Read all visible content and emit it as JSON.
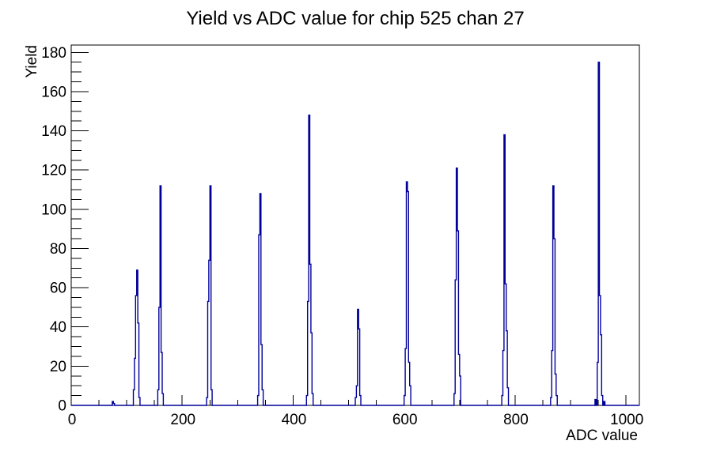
{
  "page": {
    "background": "#ffffff"
  },
  "chart_data": {
    "type": "histogram",
    "title": "Yield vs ADC value for chip 525 chan 27",
    "xlabel": "ADC value",
    "ylabel": "Yield",
    "x_range": [
      0,
      1024
    ],
    "y_range": [
      0,
      183.75
    ],
    "x_major_ticks": [
      0,
      200,
      400,
      600,
      800,
      1000
    ],
    "x_minor_tick_step": 50,
    "y_major_ticks": [
      0,
      20,
      40,
      60,
      80,
      100,
      120,
      140,
      160,
      180
    ],
    "y_minor_tick_step": 5,
    "grid": false,
    "legend": false,
    "bin_width": 2,
    "line_color": "#000099",
    "axis_color": "#000000",
    "bins": [
      [
        74,
        2
      ],
      [
        76,
        1
      ],
      [
        112,
        8
      ],
      [
        114,
        24
      ],
      [
        116,
        56
      ],
      [
        118,
        69
      ],
      [
        120,
        42
      ],
      [
        122,
        4
      ],
      [
        156,
        8
      ],
      [
        158,
        50
      ],
      [
        160,
        112
      ],
      [
        162,
        27
      ],
      [
        164,
        6
      ],
      [
        244,
        4
      ],
      [
        246,
        53
      ],
      [
        248,
        74
      ],
      [
        250,
        112
      ],
      [
        252,
        8
      ],
      [
        336,
        5
      ],
      [
        338,
        87
      ],
      [
        340,
        108
      ],
      [
        342,
        31
      ],
      [
        344,
        8
      ],
      [
        424,
        5
      ],
      [
        426,
        53
      ],
      [
        428,
        148
      ],
      [
        430,
        72
      ],
      [
        432,
        37
      ],
      [
        434,
        6
      ],
      [
        512,
        4
      ],
      [
        514,
        10
      ],
      [
        516,
        49
      ],
      [
        518,
        39
      ],
      [
        520,
        5
      ],
      [
        600,
        5
      ],
      [
        602,
        29
      ],
      [
        604,
        114
      ],
      [
        606,
        109
      ],
      [
        608,
        22
      ],
      [
        610,
        10
      ],
      [
        690,
        6
      ],
      [
        692,
        64
      ],
      [
        694,
        121
      ],
      [
        696,
        89
      ],
      [
        698,
        26
      ],
      [
        700,
        15
      ],
      [
        776,
        5
      ],
      [
        778,
        28
      ],
      [
        780,
        138
      ],
      [
        782,
        62
      ],
      [
        784,
        38
      ],
      [
        786,
        9
      ],
      [
        864,
        4
      ],
      [
        866,
        28
      ],
      [
        868,
        112
      ],
      [
        870,
        85
      ],
      [
        872,
        16
      ],
      [
        874,
        5
      ],
      [
        944,
        3
      ],
      [
        948,
        22
      ],
      [
        950,
        175
      ],
      [
        952,
        56
      ],
      [
        954,
        36
      ],
      [
        956,
        5
      ],
      [
        960,
        2
      ]
    ]
  }
}
